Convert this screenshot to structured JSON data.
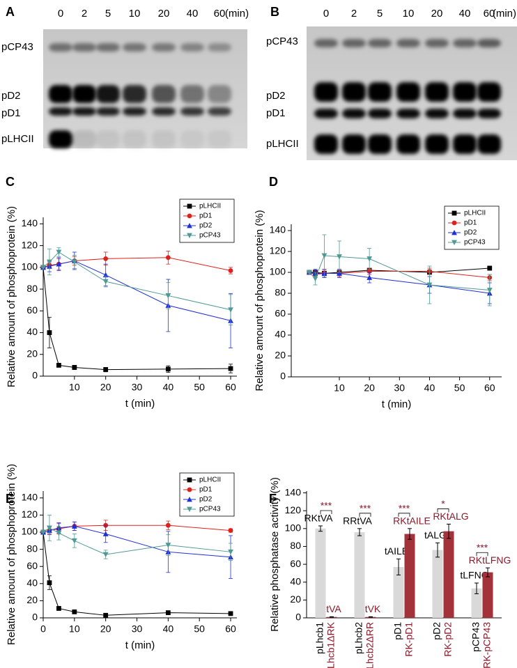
{
  "gels": [
    {
      "panel_label": "A",
      "lanes": [
        0,
        2,
        5,
        10,
        20,
        40,
        60
      ],
      "unit": "(min)",
      "bands": [
        "pCP43",
        "pD2",
        "pD1",
        "pLHCII"
      ]
    },
    {
      "panel_label": "B",
      "lanes": [
        0,
        2,
        5,
        10,
        20,
        40,
        60
      ],
      "unit": "(min)",
      "bands": [
        "pCP43",
        "pD2",
        "pD1",
        "pLHCII"
      ]
    }
  ],
  "chart_data": [
    {
      "type": "line",
      "panel_label": "C",
      "y_label": "Relative amount of phosphoprotein (%)",
      "x_label": "t (min)",
      "x": [
        0,
        2,
        5,
        10,
        20,
        40,
        60
      ],
      "xlim": [
        0,
        62
      ],
      "xticks": [
        10,
        20,
        30,
        40,
        50,
        60
      ],
      "ylim": [
        0,
        146
      ],
      "yticks": [
        0,
        20,
        40,
        60,
        80,
        100,
        120,
        140
      ],
      "legend": "upper right",
      "series": [
        {
          "name": "pLHCII",
          "color": "#000000",
          "marker": "square",
          "values": [
            100,
            40,
            10,
            8,
            6,
            6.5,
            7
          ],
          "errors": [
            0,
            14,
            1,
            2,
            2,
            3,
            4
          ]
        },
        {
          "name": "pD1",
          "color": "#e0201b",
          "marker": "circle",
          "values": [
            100,
            102,
            103,
            106,
            108,
            109,
            97
          ],
          "errors": [
            0,
            3,
            5,
            4,
            6,
            6,
            3
          ]
        },
        {
          "name": "pD2",
          "color": "#1f2fd6",
          "marker": "triangle-up",
          "values": [
            100,
            101,
            103,
            106,
            93,
            65,
            51
          ],
          "errors": [
            0,
            5,
            6,
            8,
            10,
            24,
            25
          ]
        },
        {
          "name": "pCP43",
          "color": "#4f9a94",
          "marker": "triangle-down",
          "values": [
            100,
            105,
            114,
            105,
            87,
            74,
            61
          ],
          "errors": [
            0,
            12,
            4,
            6,
            5,
            12,
            14
          ]
        }
      ]
    },
    {
      "type": "line",
      "panel_label": "D",
      "y_label": "Relative amount of phosphoprotein (%)",
      "x_label": "t (min)",
      "x": [
        0,
        2,
        5,
        10,
        20,
        40,
        60
      ],
      "xlim": [
        -6,
        64
      ],
      "xticks": [
        10,
        20,
        30,
        40,
        50,
        60
      ],
      "ylim": [
        0,
        146
      ],
      "yticks": [
        0,
        20,
        40,
        60,
        80,
        100,
        120,
        140
      ],
      "legend": "upper right",
      "series": [
        {
          "name": "pLHCII",
          "color": "#000000",
          "marker": "square",
          "values": [
            100,
            100,
            99,
            100,
            102,
            100,
            104
          ],
          "errors": [
            0,
            2,
            2,
            2,
            2,
            2,
            2
          ]
        },
        {
          "name": "pD1",
          "color": "#e0201b",
          "marker": "circle",
          "values": [
            100,
            98,
            99,
            99,
            101,
            101,
            95
          ],
          "errors": [
            0,
            3,
            3,
            3,
            3,
            3,
            3
          ]
        },
        {
          "name": "pD2",
          "color": "#1f2fd6",
          "marker": "triangle-up",
          "values": [
            100,
            99,
            99,
            99,
            95,
            88,
            80
          ],
          "errors": [
            0,
            4,
            4,
            4,
            5,
            8,
            10
          ]
        },
        {
          "name": "pCP43",
          "color": "#4f9a94",
          "marker": "triangle-down",
          "values": [
            100,
            94,
            116,
            115,
            113,
            88,
            83
          ],
          "errors": [
            0,
            6,
            20,
            15,
            10,
            18,
            15
          ]
        }
      ]
    },
    {
      "type": "line",
      "panel_label": "E",
      "y_label": "Relative amount of phosphoprotein (%)",
      "x_label": "t (min)",
      "x": [
        0,
        2,
        5,
        10,
        20,
        40,
        60
      ],
      "xlim": [
        0,
        62
      ],
      "xticks": [
        0,
        10,
        20,
        30,
        40,
        50,
        60
      ],
      "ylim": [
        0,
        148
      ],
      "yticks": [
        0,
        20,
        40,
        60,
        80,
        100,
        120,
        140
      ],
      "legend": "upper right",
      "series": [
        {
          "name": "pLHCII",
          "color": "#000000",
          "marker": "square",
          "values": [
            100,
            41,
            11,
            7,
            3,
            6,
            5
          ],
          "errors": [
            0,
            8,
            1,
            1,
            1,
            2,
            2
          ]
        },
        {
          "name": "pD1",
          "color": "#e0201b",
          "marker": "circle",
          "values": [
            100,
            102,
            104,
            107,
            108,
            108,
            102
          ],
          "errors": [
            0,
            5,
            6,
            5,
            6,
            5,
            2
          ]
        },
        {
          "name": "pD2",
          "color": "#1f2fd6",
          "marker": "triangle-up",
          "values": [
            100,
            102,
            105,
            107,
            98,
            77,
            71
          ],
          "errors": [
            0,
            4,
            6,
            5,
            10,
            24,
            25
          ]
        },
        {
          "name": "pCP43",
          "color": "#4f9a94",
          "marker": "triangle-down",
          "values": [
            100,
            105,
            99,
            90,
            74,
            85,
            77
          ],
          "errors": [
            0,
            15,
            8,
            8,
            5,
            12,
            10
          ]
        }
      ]
    },
    {
      "type": "bar",
      "panel_label": "F",
      "y_label": "Relative phosphatase activity (%)",
      "categories": [
        "pLhcb1",
        "pLhcb1ΔRK",
        "pLhcb2",
        "pLhcb2ΔRR",
        "pD1",
        "RK-pD1",
        "pD2",
        "RK-pD2",
        "pCP43",
        "RK-pCP43"
      ],
      "values": [
        100,
        1,
        96,
        1,
        57,
        94,
        76,
        97,
        33,
        51
      ],
      "errors": [
        3,
        0.3,
        4,
        0.3,
        9,
        6,
        8,
        8,
        6,
        5
      ],
      "colors": [
        "#d9d9d9",
        "#a3323a",
        "#d9d9d9",
        "#a3323a",
        "#d9d9d9",
        "#a3323a",
        "#d9d9d9",
        "#a3323a",
        "#d9d9d9",
        "#a3323a"
      ],
      "text_colors": [
        "#000000",
        "#8b1a2b",
        "#000000",
        "#8b1a2b",
        "#000000",
        "#8b1a2b",
        "#000000",
        "#8b1a2b",
        "#000000",
        "#8b1a2b"
      ],
      "bar_labels": [
        "RKtVA",
        "tVA",
        "RRtVA",
        "tVK",
        "tAILE",
        "RKtAILE",
        "tALG",
        "RKtALG",
        "tLFNG",
        "RKtLFNG"
      ],
      "significance": [
        "***",
        "***",
        "***",
        "*",
        "***"
      ],
      "significance_color": "#8b1a2b",
      "ylim": [
        0,
        142
      ],
      "yticks": [
        0,
        20,
        40,
        60,
        80,
        100,
        120,
        140
      ]
    }
  ]
}
